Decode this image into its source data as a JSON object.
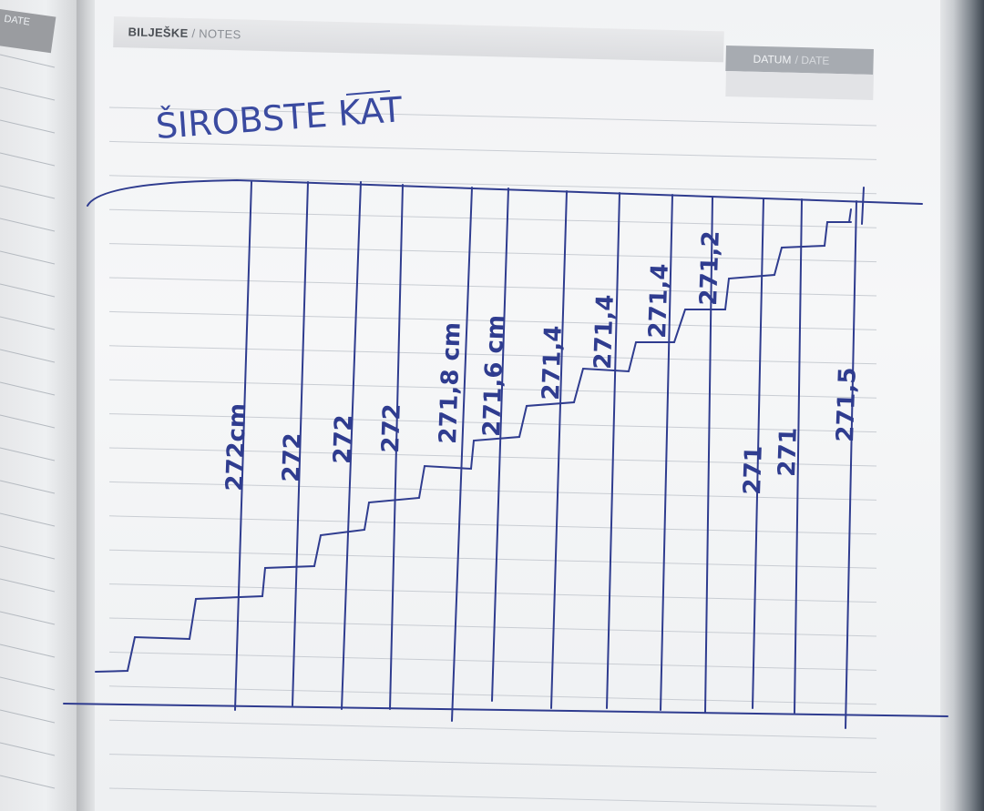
{
  "notebook": {
    "left_tab_label": "DATE",
    "header_label": "BILJEŠKE",
    "header_sub": " / NOTES",
    "date_label": "DATUM",
    "date_sub": " / DATE"
  },
  "sketch": {
    "title": "ŠIROBSTE KAT",
    "measurements": [
      "272cm",
      "272",
      "272",
      "272",
      "271,8 cm",
      "271,6 cm",
      "271,4",
      "271,4",
      "271,4",
      "271,2",
      "271",
      "271",
      "271,5"
    ]
  },
  "colors": {
    "ink": "#2f3c8f",
    "paper": "#f3f4f6",
    "rule": "#c9cdd3"
  }
}
